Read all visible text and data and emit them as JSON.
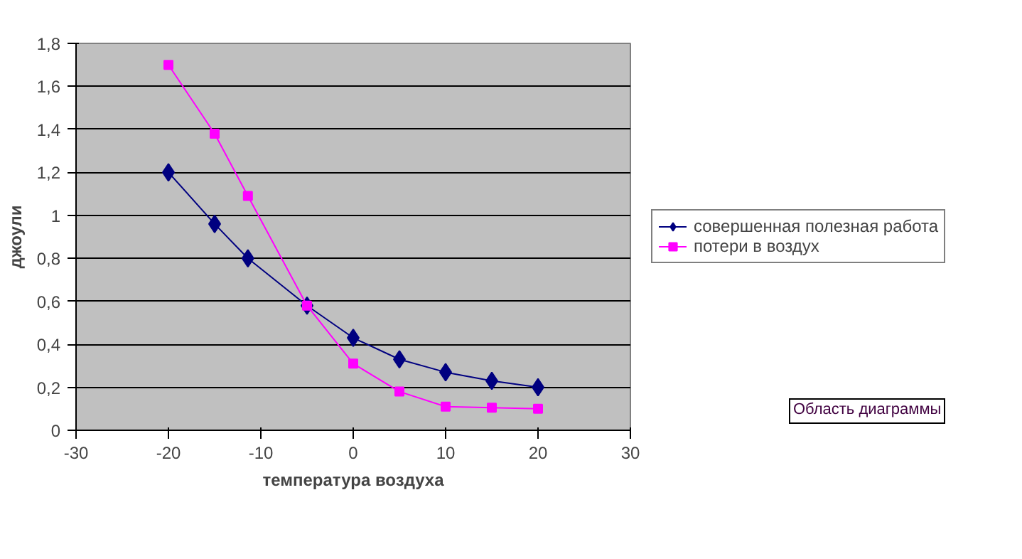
{
  "chart_data": {
    "type": "line",
    "xlabel": "температура воздуха",
    "ylabel": "джоули",
    "x": [
      -20,
      -15,
      -11.4,
      -5,
      0,
      5,
      10,
      15,
      20
    ],
    "series": [
      {
        "name": "совершенная полезная работа",
        "color": "#000080",
        "marker": "diamond",
        "values": [
          1.2,
          0.96,
          0.8,
          0.58,
          0.43,
          0.33,
          0.27,
          0.23,
          0.2
        ]
      },
      {
        "name": "потери в воздух",
        "color": "#ff00ff",
        "marker": "square",
        "values": [
          1.7,
          1.38,
          1.09,
          0.58,
          0.31,
          0.18,
          0.11,
          0.105,
          0.1
        ]
      }
    ],
    "xlim": [
      -30,
      30
    ],
    "xticks": [
      -30,
      -20,
      -10,
      0,
      10,
      20,
      30
    ],
    "ylim": [
      0,
      1.8
    ],
    "yticks": [
      0,
      {
        "value": 0.2,
        "label": "0,2"
      },
      {
        "value": 0.4,
        "label": "0,4"
      },
      {
        "value": 0.6,
        "label": "0,6"
      },
      {
        "value": 0.8,
        "label": "0,8"
      },
      1,
      {
        "value": 1.2,
        "label": "1,2"
      },
      {
        "value": 1.4,
        "label": "1,4"
      },
      {
        "value": 1.6,
        "label": "1,6"
      },
      {
        "value": 1.8,
        "label": "1,8"
      }
    ],
    "grid": "y",
    "legend": "right",
    "line_style": "solid",
    "annotations": [
      "Область диаграммы"
    ]
  }
}
